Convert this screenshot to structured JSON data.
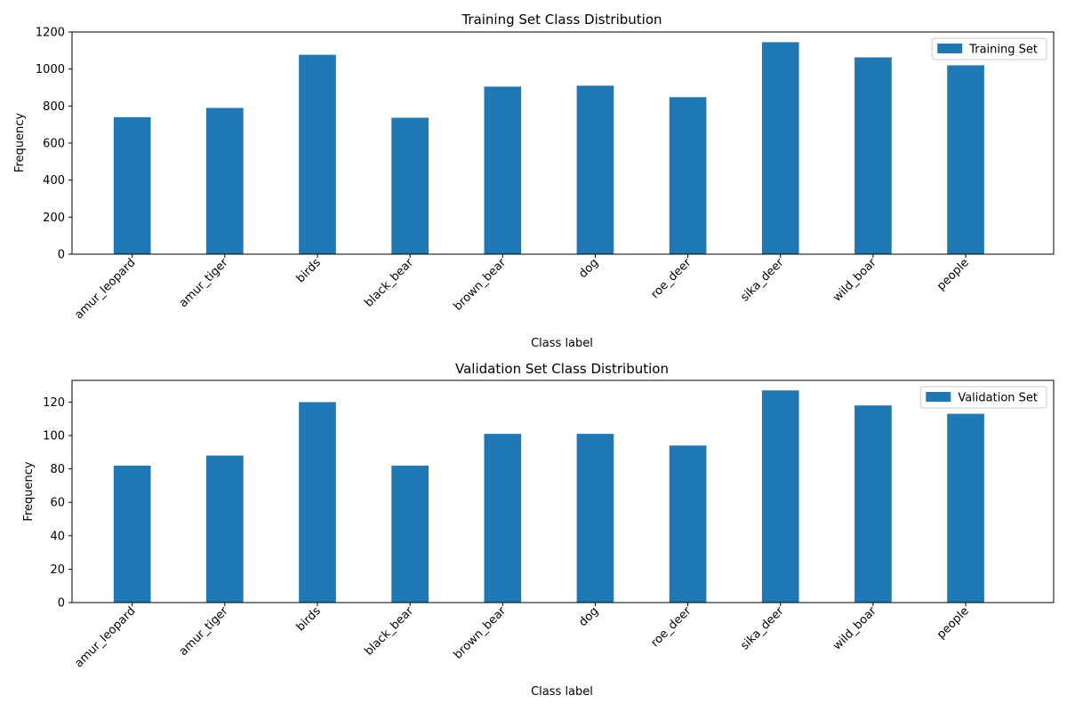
{
  "figure": {
    "bar_color": "#1f77b4",
    "background": "#ffffff"
  },
  "chart_data": [
    {
      "type": "bar",
      "title": "Training Set Class Distribution",
      "xlabel": "Class label",
      "ylabel": "Frequency",
      "ylim": [
        0,
        1200
      ],
      "yticks": [
        0,
        200,
        400,
        600,
        800,
        1000,
        1200
      ],
      "grid": false,
      "legend_position": "top-right",
      "categories": [
        "amur_leopard",
        "amur_tiger",
        "birds",
        "black_bear",
        "brown_bear",
        "dog",
        "roe_deer",
        "sika_deer",
        "wild_boar",
        "people"
      ],
      "series": [
        {
          "name": "Training Set",
          "color": "#1f77b4",
          "values": [
            740,
            790,
            1077,
            737,
            905,
            910,
            848,
            1145,
            1063,
            1020
          ]
        }
      ]
    },
    {
      "type": "bar",
      "title": "Validation Set Class Distribution",
      "xlabel": "Class label",
      "ylabel": "Frequency",
      "ylim": [
        0,
        133
      ],
      "yticks": [
        0,
        20,
        40,
        60,
        80,
        100,
        120
      ],
      "grid": false,
      "legend_position": "top-right",
      "categories": [
        "amur_leopard",
        "amur_tiger",
        "birds",
        "black_bear",
        "brown_bear",
        "dog",
        "roe_deer",
        "sika_deer",
        "wild_boar",
        "people"
      ],
      "series": [
        {
          "name": "Validation Set",
          "color": "#1f77b4",
          "values": [
            82,
            88,
            120,
            82,
            101,
            101,
            94,
            127,
            118,
            113
          ]
        }
      ]
    }
  ]
}
